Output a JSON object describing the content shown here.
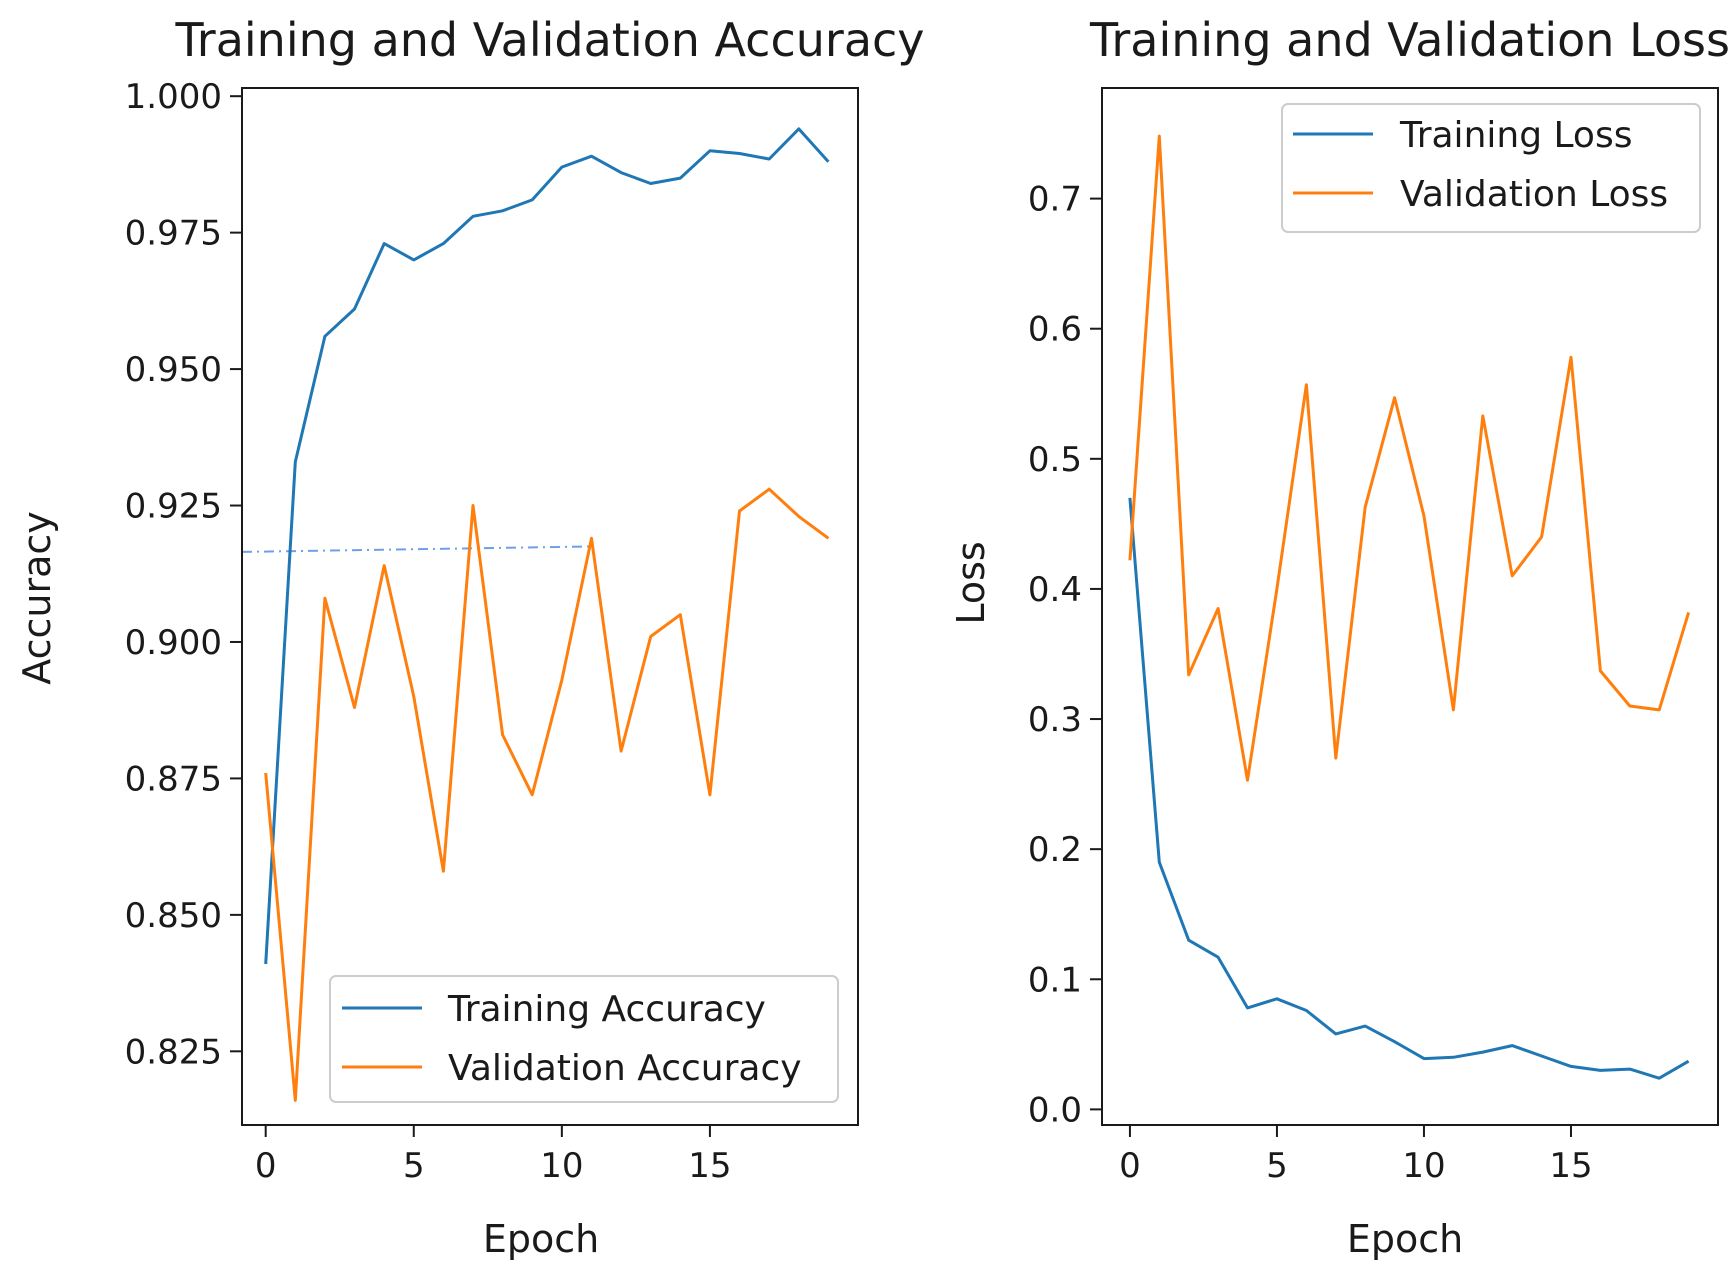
{
  "colors": {
    "training": "#1f77b4",
    "validation": "#ff7f0e",
    "axis": "#1a1a1a",
    "ref_line": "#6f9fe8"
  },
  "chart_data": [
    {
      "type": "line",
      "title": "Training and Validation Accuracy",
      "xlabel": "Epoch",
      "ylabel": "Accuracy",
      "xlim": [
        -0.8,
        20.0
      ],
      "ylim": [
        0.8115,
        1.0015
      ],
      "xticks": [
        0,
        5,
        10,
        15
      ],
      "xtick_labels": [
        "0",
        "5",
        "10",
        "15"
      ],
      "yticks": [
        0.825,
        0.85,
        0.875,
        0.9,
        0.925,
        0.95,
        0.975,
        1.0
      ],
      "ytick_labels": [
        "0.825",
        "0.850",
        "0.875",
        "0.900",
        "0.925",
        "0.950",
        "0.975",
        "1.000"
      ],
      "legend_position": "lower-right",
      "x": [
        0,
        1,
        2,
        3,
        4,
        5,
        6,
        7,
        8,
        9,
        10,
        11,
        12,
        13,
        14,
        15,
        16,
        17,
        18,
        19
      ],
      "series": [
        {
          "name": "Training Accuracy",
          "color_key": "training",
          "values": [
            0.841,
            0.933,
            0.956,
            0.961,
            0.973,
            0.97,
            0.973,
            0.978,
            0.979,
            0.981,
            0.987,
            0.989,
            0.986,
            0.984,
            0.985,
            0.99,
            0.9895,
            0.9885,
            0.994,
            0.988
          ]
        },
        {
          "name": "Validation Accuracy",
          "color_key": "validation",
          "values": [
            0.876,
            0.816,
            0.908,
            0.888,
            0.914,
            0.89,
            0.858,
            0.925,
            0.883,
            0.872,
            0.893,
            0.919,
            0.88,
            0.901,
            0.905,
            0.872,
            0.924,
            0.928,
            0.923,
            0.919
          ]
        }
      ],
      "reference_line": {
        "x": [
          -0.8,
          11
        ],
        "y": [
          0.9165,
          0.9175
        ]
      }
    },
    {
      "type": "line",
      "title": "Training and Validation Loss",
      "xlabel": "Epoch",
      "ylabel": "Loss",
      "xlim": [
        -0.95,
        20.0
      ],
      "ylim": [
        -0.012,
        0.785
      ],
      "xticks": [
        0,
        5,
        10,
        15
      ],
      "xtick_labels": [
        "0",
        "5",
        "10",
        "15"
      ],
      "yticks": [
        0.0,
        0.1,
        0.2,
        0.3,
        0.4,
        0.5,
        0.6,
        0.7
      ],
      "ytick_labels": [
        "0.0",
        "0.1",
        "0.2",
        "0.3",
        "0.4",
        "0.5",
        "0.6",
        "0.7"
      ],
      "legend_position": "top-right",
      "x": [
        0,
        1,
        2,
        3,
        4,
        5,
        6,
        7,
        8,
        9,
        10,
        11,
        12,
        13,
        14,
        15,
        16,
        17,
        18,
        19
      ],
      "series": [
        {
          "name": "Training Loss",
          "color_key": "training",
          "values": [
            0.47,
            0.19,
            0.13,
            0.117,
            0.078,
            0.085,
            0.076,
            0.058,
            0.064,
            0.052,
            0.039,
            0.04,
            0.044,
            0.049,
            0.041,
            0.033,
            0.03,
            0.031,
            0.024,
            0.037
          ]
        },
        {
          "name": "Validation Loss",
          "color_key": "validation",
          "values": [
            0.422,
            0.748,
            0.334,
            0.385,
            0.253,
            0.4,
            0.557,
            0.27,
            0.463,
            0.547,
            0.456,
            0.307,
            0.533,
            0.41,
            0.44,
            0.578,
            0.337,
            0.31,
            0.307,
            0.382
          ]
        }
      ]
    }
  ]
}
